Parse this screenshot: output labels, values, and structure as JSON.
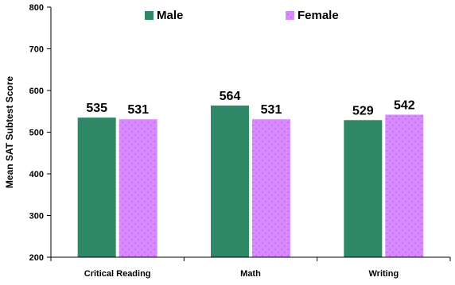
{
  "chart_data": {
    "type": "bar",
    "ylabel": "Mean SAT Subtest Score",
    "ylim": [
      200,
      800
    ],
    "yticks": [
      200,
      300,
      400,
      500,
      600,
      700,
      800
    ],
    "categories": [
      "Critical Reading",
      "Math",
      "Writing"
    ],
    "series": [
      {
        "name": "Male",
        "values": [
          535,
          564,
          529
        ],
        "color": "#2e8b5e",
        "dot_color": "#4a5fd0"
      },
      {
        "name": "Female",
        "values": [
          531,
          531,
          542
        ],
        "color": "#d98aff",
        "dot_color": "#b466e8"
      }
    ],
    "legend_position": "top",
    "grid": false,
    "data_labels": true
  }
}
